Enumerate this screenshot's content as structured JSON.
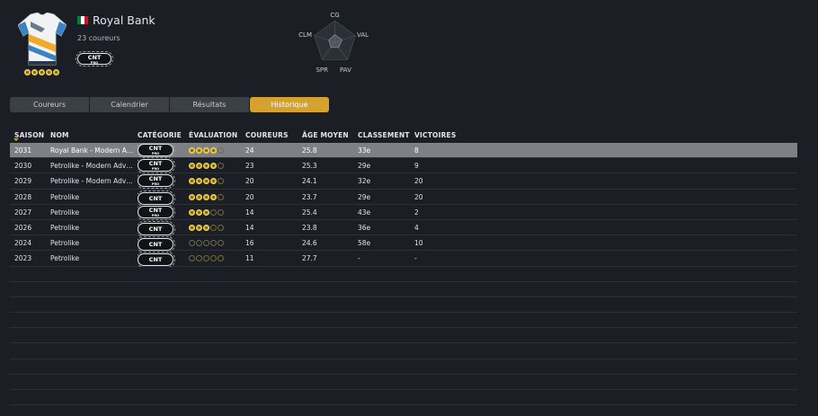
{
  "team": {
    "name": "Royal Bank",
    "riders_count": "23 coureurs",
    "category_badge": {
      "main": "CNT",
      "sub": "PRO"
    },
    "rating_stars": 4.5,
    "flag_colors": [
      "#0b7a3f",
      "#ffffff",
      "#ce1126"
    ],
    "jersey_colors": {
      "base": "#f1f2f4",
      "accent1": "#f0a92b",
      "accent2": "#3b82c4",
      "accent3": "#6a7a8a"
    }
  },
  "radar": {
    "labels": {
      "top": "CG",
      "right": "VAL",
      "bottom_right": "PAV",
      "bottom_left": "SPR",
      "left": "CLM"
    },
    "values": [
      0.35,
      0.35,
      0.3,
      0.3,
      0.3
    ]
  },
  "tabs": [
    {
      "label": "Coureurs",
      "active": false
    },
    {
      "label": "Calendrier",
      "active": false
    },
    {
      "label": "Résultats",
      "active": false
    },
    {
      "label": "Historique",
      "active": true
    }
  ],
  "table": {
    "headers": {
      "season": "SAISON",
      "name": "NOM",
      "category": "CATÉGORIE",
      "rating": "ÉVALUATION",
      "riders": "COUREURS",
      "avg_age": "ÂGE MOYEN",
      "ranking": "CLASSEMENT",
      "wins": "VICTOIRES"
    },
    "rows": [
      {
        "season": "2031",
        "name": "Royal Bank - Modern Ad...",
        "cat_main": "CNT",
        "cat_sub": "PRO",
        "stars": 4,
        "riders": "24",
        "age": "25.8",
        "rank": "33e",
        "wins": "8",
        "selected": true
      },
      {
        "season": "2030",
        "name": "Petrolike - Modern Adve...",
        "cat_main": "CNT",
        "cat_sub": "PRO",
        "stars": 4,
        "riders": "23",
        "age": "25.3",
        "rank": "29e",
        "wins": "9",
        "selected": false
      },
      {
        "season": "2029",
        "name": "Petrolike - Modern Adve...",
        "cat_main": "CNT",
        "cat_sub": "PRO",
        "stars": 4,
        "riders": "20",
        "age": "24.1",
        "rank": "32e",
        "wins": "20",
        "selected": false
      },
      {
        "season": "2028",
        "name": "Petrolike",
        "cat_main": "CNT",
        "cat_sub": "",
        "stars": 4,
        "riders": "20",
        "age": "23.7",
        "rank": "29e",
        "wins": "20",
        "selected": false
      },
      {
        "season": "2027",
        "name": "Petrolike",
        "cat_main": "CNT",
        "cat_sub": "PRO",
        "stars": 3,
        "riders": "14",
        "age": "25.4",
        "rank": "43e",
        "wins": "2",
        "selected": false
      },
      {
        "season": "2026",
        "name": "Petrolike",
        "cat_main": "CNT",
        "cat_sub": "",
        "stars": 3,
        "riders": "14",
        "age": "23.8",
        "rank": "36e",
        "wins": "4",
        "selected": false
      },
      {
        "season": "2024",
        "name": "Petrolike",
        "cat_main": "CNT",
        "cat_sub": "",
        "stars": 0,
        "riders": "16",
        "age": "24.6",
        "rank": "58e",
        "wins": "10",
        "selected": false
      },
      {
        "season": "2023",
        "name": "Petrolike",
        "cat_main": "CNT",
        "cat_sub": "",
        "stars": 0,
        "riders": "11",
        "age": "27.7",
        "rank": "-",
        "wins": "-",
        "selected": false
      }
    ],
    "empty_rows": 9
  }
}
